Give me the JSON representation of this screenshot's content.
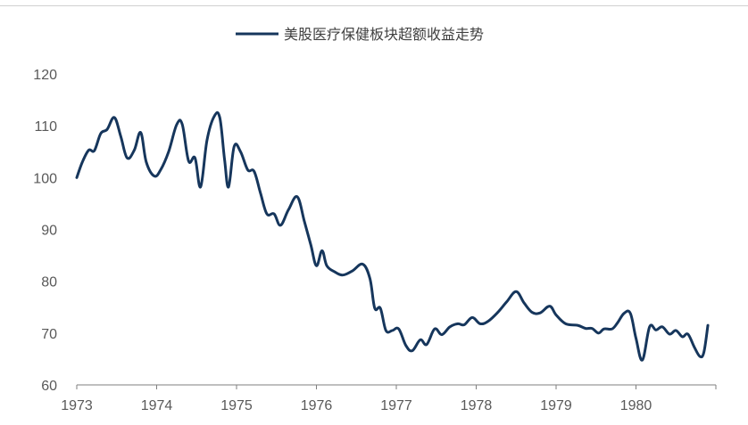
{
  "chart_data": {
    "type": "line",
    "title": "",
    "xlabel": "",
    "ylabel": "",
    "xlim": [
      1973,
      1981
    ],
    "ylim": [
      60,
      120
    ],
    "x_ticks": [
      "1973",
      "1974",
      "1975",
      "1976",
      "1977",
      "1978",
      "1979",
      "1980"
    ],
    "y_ticks": [
      "60",
      "70",
      "80",
      "90",
      "100",
      "110",
      "120"
    ],
    "grid": false,
    "legend_position": "top-center",
    "series": [
      {
        "name": "美股医疗保健板块超额收益走势",
        "color": "#16365c",
        "points": [
          [
            1973.0,
            100.0
          ],
          [
            1973.07,
            103.0
          ],
          [
            1973.15,
            105.3
          ],
          [
            1973.22,
            105.2
          ],
          [
            1973.3,
            108.5
          ],
          [
            1973.38,
            109.3
          ],
          [
            1973.47,
            111.6
          ],
          [
            1973.55,
            108.0
          ],
          [
            1973.63,
            103.8
          ],
          [
            1973.72,
            105.3
          ],
          [
            1973.8,
            108.7
          ],
          [
            1973.87,
            103.0
          ],
          [
            1973.97,
            100.3
          ],
          [
            1974.05,
            101.5
          ],
          [
            1974.15,
            105.0
          ],
          [
            1974.25,
            110.2
          ],
          [
            1974.32,
            110.3
          ],
          [
            1974.4,
            103.2
          ],
          [
            1974.48,
            103.8
          ],
          [
            1974.55,
            98.2
          ],
          [
            1974.63,
            107.2
          ],
          [
            1974.72,
            111.8
          ],
          [
            1974.79,
            111.6
          ],
          [
            1974.85,
            103.5
          ],
          [
            1974.9,
            98.2
          ],
          [
            1974.97,
            106.0
          ],
          [
            1975.05,
            105.0
          ],
          [
            1975.14,
            101.5
          ],
          [
            1975.22,
            101.2
          ],
          [
            1975.3,
            97.0
          ],
          [
            1975.38,
            93.0
          ],
          [
            1975.47,
            93.0
          ],
          [
            1975.55,
            90.8
          ],
          [
            1975.65,
            93.8
          ],
          [
            1975.76,
            96.3
          ],
          [
            1975.85,
            91.5
          ],
          [
            1975.93,
            87.0
          ],
          [
            1976.0,
            83.0
          ],
          [
            1976.07,
            85.9
          ],
          [
            1976.13,
            83.0
          ],
          [
            1976.23,
            81.8
          ],
          [
            1976.33,
            81.2
          ],
          [
            1976.45,
            82.0
          ],
          [
            1976.58,
            83.3
          ],
          [
            1976.67,
            80.5
          ],
          [
            1976.73,
            74.8
          ],
          [
            1976.8,
            74.8
          ],
          [
            1976.87,
            70.5
          ],
          [
            1976.95,
            70.5
          ],
          [
            1977.03,
            70.8
          ],
          [
            1977.12,
            67.6
          ],
          [
            1977.2,
            66.6
          ],
          [
            1977.3,
            68.7
          ],
          [
            1977.38,
            67.8
          ],
          [
            1977.48,
            70.8
          ],
          [
            1977.57,
            69.7
          ],
          [
            1977.67,
            71.2
          ],
          [
            1977.77,
            71.8
          ],
          [
            1977.85,
            71.6
          ],
          [
            1977.95,
            73.0
          ],
          [
            1978.05,
            71.8
          ],
          [
            1978.15,
            72.3
          ],
          [
            1978.27,
            74.0
          ],
          [
            1978.38,
            76.0
          ],
          [
            1978.5,
            78.0
          ],
          [
            1978.6,
            75.8
          ],
          [
            1978.7,
            74.0
          ],
          [
            1978.8,
            73.9
          ],
          [
            1978.92,
            75.2
          ],
          [
            1979.0,
            73.5
          ],
          [
            1979.12,
            71.8
          ],
          [
            1979.27,
            71.5
          ],
          [
            1979.37,
            70.9
          ],
          [
            1979.45,
            70.9
          ],
          [
            1979.53,
            70.0
          ],
          [
            1979.6,
            70.8
          ],
          [
            1979.7,
            70.8
          ],
          [
            1979.77,
            72.0
          ],
          [
            1979.85,
            73.8
          ],
          [
            1979.93,
            73.8
          ],
          [
            1980.0,
            69.0
          ],
          [
            1980.08,
            64.8
          ],
          [
            1980.17,
            71.2
          ],
          [
            1980.25,
            70.6
          ],
          [
            1980.33,
            71.2
          ],
          [
            1980.42,
            69.8
          ],
          [
            1980.5,
            70.5
          ],
          [
            1980.58,
            69.3
          ],
          [
            1980.65,
            69.8
          ],
          [
            1980.73,
            67.3
          ],
          [
            1980.8,
            65.5
          ],
          [
            1980.85,
            66.3
          ],
          [
            1980.9,
            71.5
          ]
        ]
      }
    ]
  },
  "colors": {
    "axis": "#7f7f7f",
    "tick_text": "#595959",
    "legend_text": "#404040",
    "series_line": "#16365c"
  }
}
